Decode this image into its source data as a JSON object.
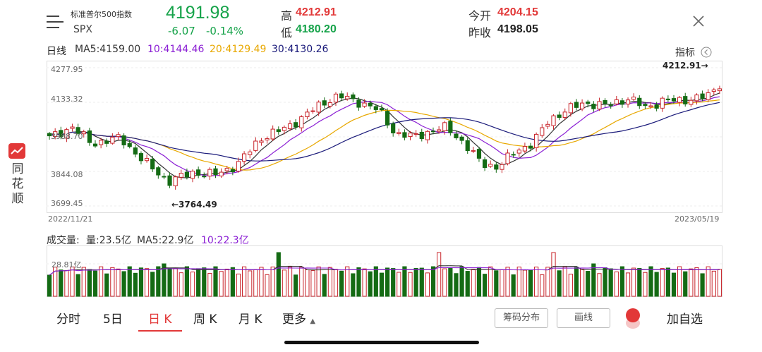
{
  "header": {
    "index_name": "标准普尔500指数",
    "index_code": "SPX",
    "price": "4191.98",
    "change": "-6.07",
    "change_pct": "-0.14%",
    "high_label": "高",
    "high_value": "4212.91",
    "low_label": "低",
    "low_value": "4180.20",
    "open_label": "今开",
    "open_value": "4204.15",
    "prev_close_label": "昨收",
    "prev_close_value": "4198.05"
  },
  "ma_row": {
    "period": "日线",
    "ma5": "MA5:4159.00",
    "ma10": "10:4144.46",
    "ma20": "20:4129.49",
    "ma30": "30:4130.26"
  },
  "indicator_label": "指标",
  "side_app": {
    "name_chars": [
      "同",
      "花",
      "顺"
    ]
  },
  "volume_row": {
    "title": "成交量:",
    "vol": "量:23.5亿",
    "ma5": "MA5:22.9亿",
    "ma10": "10:22.3亿",
    "axis_value": "28.81亿"
  },
  "chart_data": {
    "type": "candlestick",
    "y_ticks": [
      "4277.95",
      "4133.32",
      "3988.70",
      "3844.08",
      "3699.45"
    ],
    "ylim": [
      3699.45,
      4277.95
    ],
    "x_start_label": "2022/11/21",
    "x_end_label": "2023/05/19",
    "max_annotation": "4212.91→",
    "min_annotation": "←3764.49",
    "colors": {
      "up": "#c8242a",
      "down": "#146b14",
      "ma5": "#333333",
      "ma10": "#8b1fd4",
      "ma20": "#e8a800",
      "ma30": "#1a1a7a"
    }
  },
  "tabs": [
    "分时",
    "5日",
    "日 K",
    "周 K",
    "月 K",
    "更多"
  ],
  "buttons": {
    "chips": "筹码分布",
    "draw": "画线",
    "add_fav": "加自选"
  }
}
